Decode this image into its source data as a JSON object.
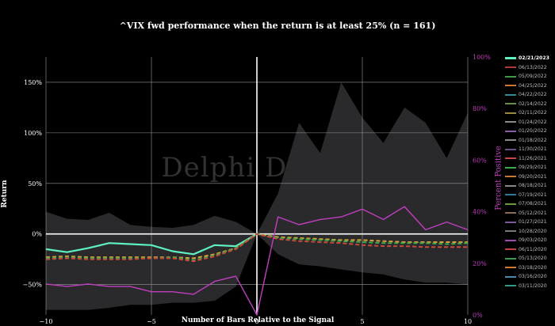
{
  "chart_data": {
    "type": "line",
    "title": "^VIX fwd performance when the return is at least 25% (n = 161)",
    "xlabel": "Number of Bars Relative to the Signal",
    "ylabel": "Return",
    "ylabel_right": "Percent Positive",
    "watermark": "Delphi Digital",
    "xlim": [
      -10,
      10
    ],
    "ylim": [
      -80,
      175
    ],
    "ylim_right": [
      0,
      100
    ],
    "x_ticks": [
      -10,
      -5,
      0,
      5,
      10
    ],
    "x_tick_labels": [
      "−10",
      "−5",
      "0",
      "5",
      "10"
    ],
    "y_ticks": [
      -50,
      0,
      50,
      100,
      150
    ],
    "y_tick_labels": [
      "−50%",
      "0%",
      "50%",
      "100%",
      "150%"
    ],
    "y_right_ticks": [
      0,
      20,
      40,
      60,
      80,
      100
    ],
    "y_right_tick_labels": [
      "0%",
      "20%",
      "40%",
      "60%",
      "80%",
      "100%"
    ],
    "grid": true,
    "legend_position": "right",
    "x": [
      -10,
      -9,
      -8,
      -7,
      -6,
      -5,
      -4,
      -3,
      -2,
      -1,
      0,
      1,
      2,
      3,
      4,
      5,
      6,
      7,
      8,
      9,
      10
    ],
    "band_upper": [
      22,
      15,
      14,
      21,
      9,
      7,
      6,
      9,
      18,
      12,
      0,
      40,
      110,
      80,
      150,
      115,
      90,
      125,
      110,
      75,
      120
    ],
    "band_lower": [
      -75,
      -75,
      -75,
      -73,
      -70,
      -70,
      -68,
      -68,
      -66,
      -52,
      0,
      -20,
      -30,
      -32,
      -35,
      -38,
      -40,
      -45,
      -48,
      -48,
      -50
    ],
    "series": [
      {
        "name": "02/21/2023",
        "color": "#5ef0c0",
        "axis": "left",
        "dash": false,
        "width": 2.2,
        "values": [
          -15,
          -18,
          -14,
          -9,
          -10,
          -11,
          -17,
          -20,
          -11,
          -12,
          0,
          null,
          null,
          null,
          null,
          null,
          null,
          null,
          null,
          null,
          null
        ]
      },
      {
        "name": "",
        "color": "#d9a03a",
        "axis": "left",
        "dash": true,
        "width": 2,
        "values": [
          -23,
          -22,
          -23,
          -23,
          -23,
          -23,
          -23,
          -24,
          -20,
          -14,
          0,
          -3,
          -4,
          -5,
          -6,
          -6,
          -7,
          -8,
          -8,
          -8,
          -8
        ]
      },
      {
        "name": "",
        "color": "#3fa84a",
        "axis": "left",
        "dash": true,
        "width": 2,
        "values": [
          -24,
          -23,
          -24,
          -24,
          -24,
          -24,
          -23,
          -26,
          -21,
          -14,
          0,
          -4,
          -5,
          -6,
          -7,
          -8,
          -9,
          -9,
          -9,
          -10,
          -9
        ]
      },
      {
        "name": "",
        "color": "#c8493b",
        "axis": "left",
        "dash": true,
        "width": 2,
        "values": [
          -25,
          -24,
          -25,
          -25,
          -25,
          -24,
          -24,
          -27,
          -22,
          -15,
          0,
          -5,
          -7,
          -8,
          -9,
          -11,
          -12,
          -12,
          -13,
          -13,
          -13
        ]
      },
      {
        "name": "",
        "color": "#c13ebf",
        "axis": "right",
        "dash": false,
        "width": 1.4,
        "values": [
          12,
          11,
          12,
          11,
          11,
          9,
          9,
          8,
          13,
          15,
          0,
          38,
          35,
          37,
          38,
          41,
          37,
          42,
          33,
          36,
          33
        ]
      }
    ],
    "legend_labels": [
      "02/21/2023",
      "06/13/2022",
      "05/09/2022",
      "04/25/2022",
      "04/22/2022",
      "02/14/2022",
      "02/11/2022",
      "01/24/2022",
      "01/20/2022",
      "01/18/2022",
      "11/30/2021",
      "11/26/2021",
      "09/29/2021",
      "09/20/2021",
      "08/18/2021",
      "07/19/2021",
      "07/08/2021",
      "05/12/2021",
      "01/27/2021",
      "10/28/2020",
      "09/03/2020",
      "06/11/2020",
      "05/13/2020",
      "03/18/2020",
      "03/16/2020",
      "03/11/2020"
    ],
    "legend_colors": [
      "#5ef0c0",
      "#b03a3a",
      "#3f9a47",
      "#c9792e",
      "#2f8a9a",
      "#6a8d4a",
      "#9a8a3a",
      "#8a8a8a",
      "#8a5aa6",
      "#8a8a8a",
      "#6a4f8a",
      "#c04a4a",
      "#3fa84a",
      "#c97a2e",
      "#8a8a8a",
      "#2f7a9a",
      "#6a9a3a",
      "#8a6a5a",
      "#7a5a9a",
      "#7a7a7a",
      "#9a4ab0",
      "#c04040",
      "#3f9a57",
      "#d07a2a",
      "#4a8ab0",
      "#2f9a8a"
    ]
  }
}
